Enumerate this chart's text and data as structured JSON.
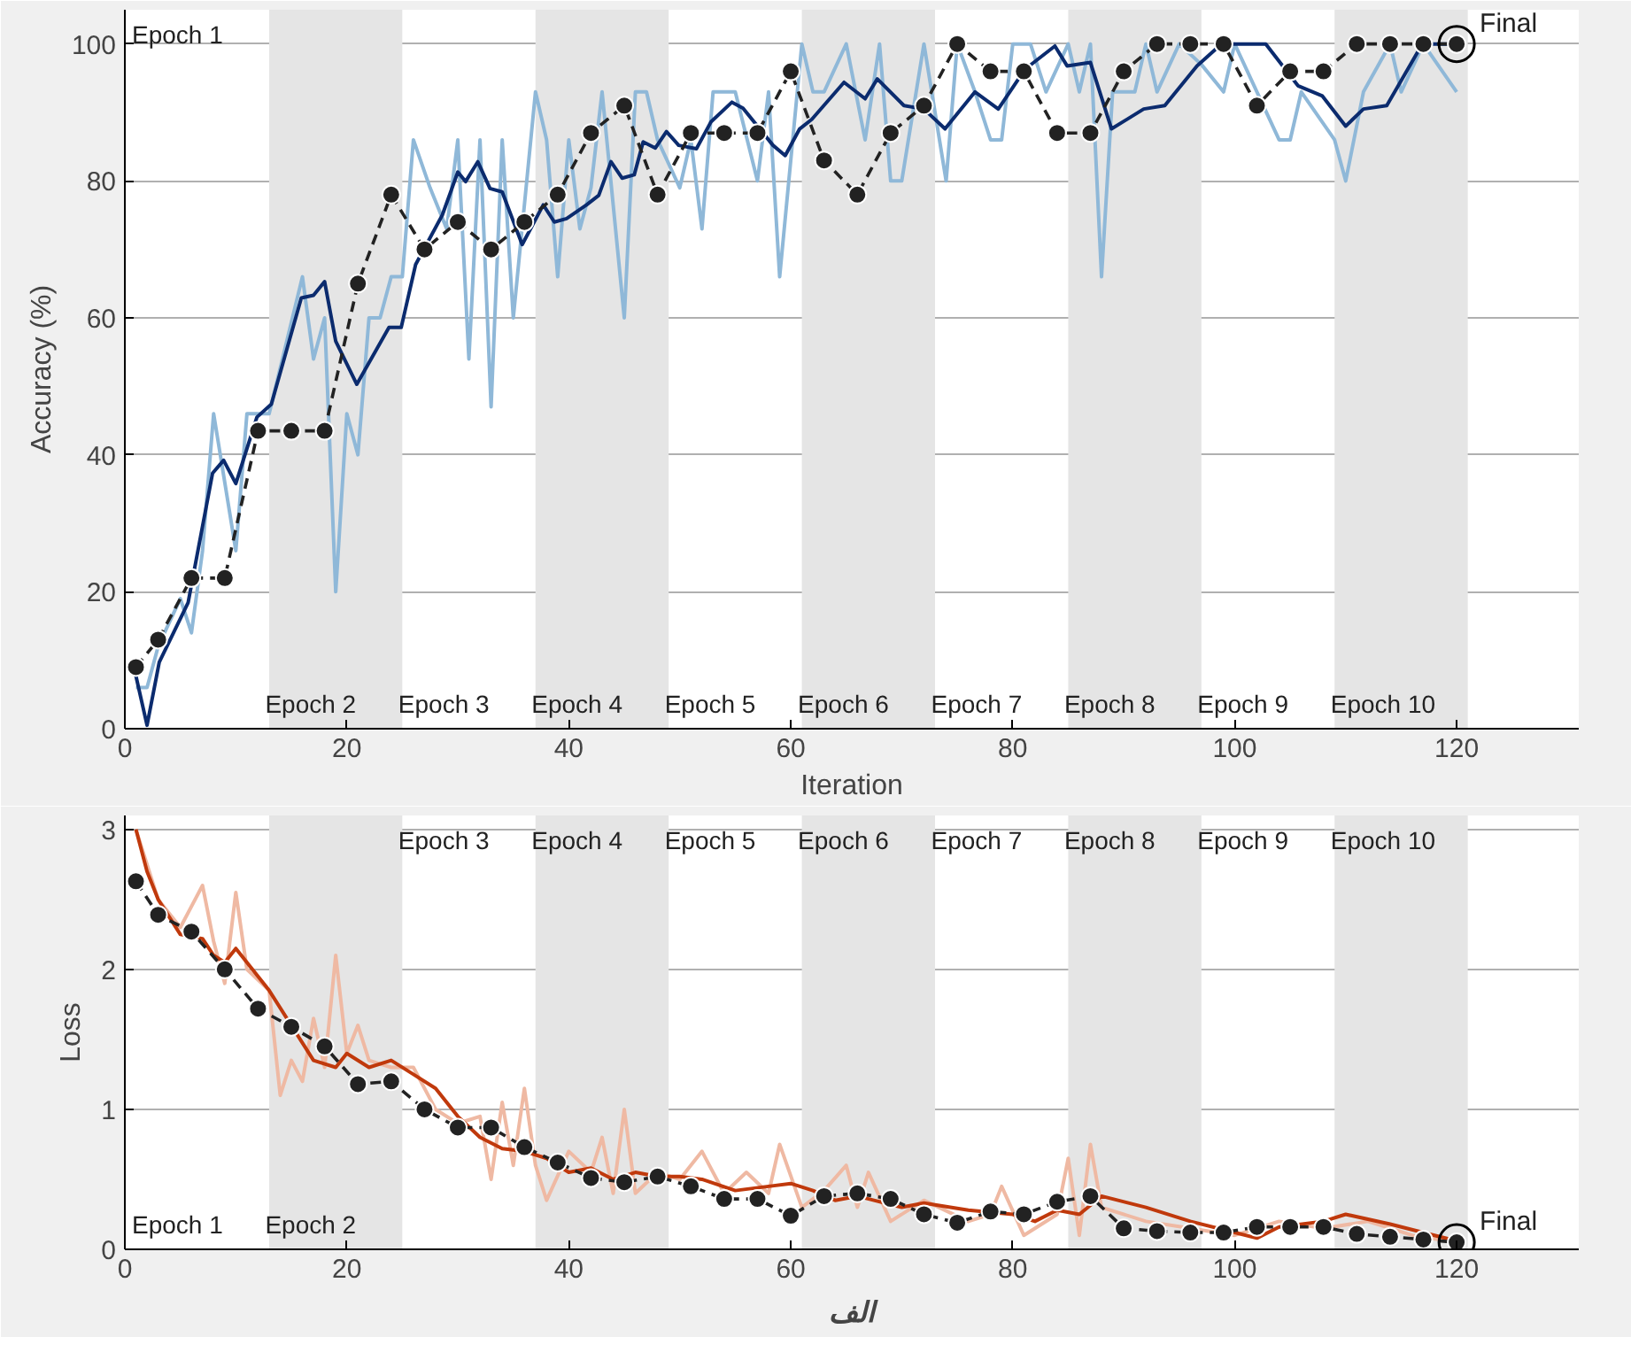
{
  "chart_data": [
    {
      "type": "line",
      "xlabel": "Iteration",
      "ylabel": "Accuracy (%)",
      "xlim": [
        0,
        131
      ],
      "ylim": [
        0,
        105
      ],
      "xticks": [
        0,
        20,
        40,
        60,
        80,
        100,
        120
      ],
      "yticks": [
        0,
        20,
        40,
        60,
        80,
        100
      ],
      "grid": "y",
      "series": [
        {
          "color": "#8fb8d8",
          "marker": "none",
          "line_style": "solid",
          "x": [
            1,
            2,
            3,
            5,
            6,
            7,
            8,
            9,
            10,
            11,
            13,
            16,
            17,
            18,
            19,
            20,
            21,
            22,
            23,
            24,
            25,
            26,
            27.5,
            29,
            30,
            31,
            32,
            33,
            34,
            35,
            37,
            38,
            39,
            40,
            41,
            42,
            43,
            45,
            46,
            47,
            48,
            50,
            51,
            52,
            53,
            55,
            57,
            58,
            59,
            61,
            62,
            63,
            65,
            66.7,
            68,
            69,
            70,
            72,
            74,
            75,
            76.6,
            78,
            79,
            80,
            81.6,
            83,
            85,
            86,
            87,
            88,
            89,
            91,
            92,
            93,
            95,
            97,
            99,
            100,
            104,
            105,
            106,
            109,
            110,
            111.6,
            114,
            115,
            117,
            120
          ],
          "values": [
            6,
            6,
            12,
            19,
            14,
            26,
            46,
            36,
            26,
            46,
            46,
            66,
            54,
            60,
            20,
            46,
            40,
            60,
            60,
            66,
            66,
            86,
            79,
            73,
            86,
            54,
            86,
            47,
            86,
            60,
            93,
            86,
            66,
            86,
            73,
            79,
            93,
            60,
            93,
            93,
            86,
            79,
            86,
            73,
            93,
            93,
            80,
            93,
            66,
            100,
            93,
            93,
            100,
            86,
            100,
            80,
            80,
            100,
            80,
            100,
            93,
            86,
            86,
            100,
            100,
            93,
            100,
            93,
            100,
            66,
            93,
            93,
            100,
            93,
            100,
            97,
            93,
            100,
            86,
            86,
            93,
            86,
            80,
            93,
            100,
            93,
            100,
            93
          ]
        },
        {
          "color": "#0b2b6e",
          "marker": "none",
          "line_style": "solid",
          "x": [
            1,
            2,
            3.1,
            5.7,
            7.9,
            8.9,
            10,
            11.9,
            13.2,
            15.9,
            17,
            18,
            19,
            20.9,
            23.8,
            24.9,
            26.2,
            28.6,
            30,
            30.7,
            31.8,
            32.9,
            34,
            35.8,
            37.7,
            38.7,
            39.8,
            41.6,
            42.7,
            43.8,
            44.8,
            45.9,
            46.7,
            47.8,
            48.8,
            49.9,
            51.5,
            52.8,
            54.7,
            55.7,
            58.4,
            59.5,
            60.8,
            61.9,
            64.8,
            66.7,
            67.8,
            70.2,
            72,
            73.9,
            76.6,
            78.7,
            81.1,
            83.8,
            84.9,
            87,
            88.9,
            91.8,
            93.7,
            96.6,
            98.8,
            102.8,
            105.7,
            107.9,
            110,
            111.6,
            113.7,
            116.9,
            119.6
          ],
          "values": [
            7.7,
            0.5,
            9.7,
            18.4,
            37.3,
            39.2,
            35.8,
            45.5,
            47.4,
            62.9,
            63.3,
            65.3,
            56.6,
            50.3,
            58.6,
            58.6,
            67.8,
            75,
            81.3,
            79.9,
            82.8,
            78.9,
            78.4,
            70.7,
            76.5,
            74,
            74.5,
            76.5,
            77.9,
            82.8,
            80.4,
            80.9,
            85.7,
            84.8,
            87.2,
            85.2,
            84.7,
            88.6,
            91.5,
            90.6,
            85.2,
            83.7,
            87.6,
            89,
            94.4,
            92,
            94.9,
            91,
            90.5,
            87.6,
            93,
            90.5,
            96.3,
            99.7,
            96.8,
            97.3,
            87.6,
            90.5,
            91,
            96.8,
            100,
            100,
            93.9,
            92.4,
            88,
            90.5,
            91,
            100,
            100
          ]
        },
        {
          "color": "#222222",
          "marker": "circle",
          "line_style": "dashed",
          "x": [
            1,
            3,
            6,
            9,
            12,
            15,
            18,
            21,
            24,
            27,
            30,
            33,
            36,
            39,
            42,
            45,
            48,
            51,
            54,
            57,
            60,
            63,
            66,
            69,
            72,
            75,
            78,
            81,
            84,
            87,
            90,
            93,
            96,
            99,
            102,
            105,
            108,
            111,
            114,
            117,
            120
          ],
          "values": [
            9,
            13,
            22,
            22,
            43.5,
            43.5,
            43.5,
            65,
            78,
            70,
            74,
            70,
            74,
            78,
            87,
            91,
            78,
            87,
            87,
            87,
            96,
            83,
            78,
            87,
            91,
            100,
            96,
            96,
            87,
            87,
            96,
            100,
            100,
            100,
            91,
            96,
            96,
            100,
            100,
            100,
            100
          ]
        }
      ],
      "bands": [
        {
          "axis": "x",
          "from": 13,
          "to": 25,
          "color": "#e5e5e5"
        },
        {
          "axis": "x",
          "from": 37,
          "to": 49,
          "color": "#e5e5e5"
        },
        {
          "axis": "x",
          "from": 61,
          "to": 73,
          "color": "#e5e5e5"
        },
        {
          "axis": "x",
          "from": 85,
          "to": 97,
          "color": "#e5e5e5"
        },
        {
          "axis": "x",
          "from": 109,
          "to": 121,
          "color": "#e5e5e5"
        }
      ],
      "annotations": [
        "Epoch 1",
        "Epoch 2",
        "Epoch 3",
        "Epoch 4",
        "Epoch 5",
        "Epoch 6",
        "Epoch 7",
        "Epoch 8",
        "Epoch 9",
        "Epoch 10",
        {
          "text": "Final",
          "x": 120,
          "y": 100
        }
      ]
    },
    {
      "type": "line",
      "ylabel": "Loss",
      "xlim": [
        0,
        131
      ],
      "ylim": [
        0,
        3.1
      ],
      "xticks": [
        0,
        20,
        40,
        60,
        80,
        100,
        120
      ],
      "yticks": [
        0,
        1,
        2,
        3
      ],
      "grid": "y",
      "series": [
        {
          "color": "#efb9a3",
          "marker": "none",
          "line_style": "solid",
          "x": [
            1,
            3,
            5,
            7,
            8,
            9,
            10,
            11,
            13,
            14,
            15,
            16,
            17,
            18,
            19,
            20,
            21,
            22,
            24,
            26,
            28,
            30,
            32,
            33,
            34,
            35,
            36,
            37,
            38,
            40,
            42,
            43,
            44,
            45,
            46,
            48,
            50,
            52,
            54,
            56,
            58,
            59,
            61,
            63,
            65,
            66,
            67,
            69,
            72,
            76,
            78,
            79,
            81,
            84,
            85,
            86,
            87,
            88,
            92,
            96,
            100,
            104,
            108,
            112,
            116,
            120
          ],
          "values": [
            3.0,
            2.5,
            2.3,
            2.6,
            2.2,
            1.9,
            2.55,
            2.0,
            1.85,
            1.1,
            1.35,
            1.2,
            1.65,
            1.3,
            2.1,
            1.4,
            1.6,
            1.35,
            1.3,
            1.3,
            1.0,
            0.9,
            0.95,
            0.5,
            1.05,
            0.6,
            1.15,
            0.6,
            0.35,
            0.7,
            0.55,
            0.8,
            0.4,
            1.0,
            0.4,
            0.55,
            0.5,
            0.7,
            0.4,
            0.55,
            0.4,
            0.75,
            0.3,
            0.42,
            0.6,
            0.3,
            0.55,
            0.2,
            0.35,
            0.2,
            0.25,
            0.45,
            0.1,
            0.25,
            0.65,
            0.1,
            0.75,
            0.3,
            0.2,
            0.15,
            0.1,
            0.2,
            0.15,
            0.2,
            0.1,
            0.05
          ]
        },
        {
          "color": "#c0390c",
          "marker": "none",
          "line_style": "solid",
          "x": [
            1,
            2,
            3,
            5,
            7,
            8,
            9,
            10,
            12,
            13,
            15,
            17,
            19,
            20,
            22,
            24,
            26,
            28,
            30,
            32,
            34,
            36,
            38,
            40,
            42,
            44,
            46,
            48,
            50,
            52,
            55,
            58,
            60,
            62,
            64,
            66,
            70,
            72,
            76,
            80,
            82,
            84,
            86,
            88,
            92,
            96,
            100,
            102,
            104,
            108,
            110,
            114,
            118,
            120
          ],
          "values": [
            3.0,
            2.7,
            2.5,
            2.25,
            2.22,
            2.1,
            2.05,
            2.15,
            1.95,
            1.85,
            1.6,
            1.35,
            1.3,
            1.4,
            1.3,
            1.35,
            1.25,
            1.15,
            0.95,
            0.8,
            0.72,
            0.7,
            0.65,
            0.55,
            0.58,
            0.5,
            0.55,
            0.52,
            0.52,
            0.5,
            0.42,
            0.45,
            0.47,
            0.42,
            0.35,
            0.38,
            0.3,
            0.33,
            0.28,
            0.25,
            0.2,
            0.28,
            0.25,
            0.38,
            0.3,
            0.2,
            0.12,
            0.08,
            0.16,
            0.2,
            0.25,
            0.18,
            0.1,
            0.06
          ]
        },
        {
          "color": "#222222",
          "marker": "circle",
          "line_style": "dashed",
          "x": [
            1,
            3,
            6,
            9,
            12,
            15,
            18,
            21,
            24,
            27,
            30,
            33,
            36,
            39,
            42,
            45,
            48,
            51,
            54,
            57,
            60,
            63,
            66,
            69,
            72,
            75,
            78,
            81,
            84,
            87,
            90,
            93,
            96,
            99,
            102,
            105,
            108,
            111,
            114,
            117,
            120
          ],
          "values": [
            2.63,
            2.39,
            2.27,
            2.0,
            1.72,
            1.59,
            1.45,
            1.18,
            1.2,
            1.0,
            0.87,
            0.87,
            0.73,
            0.62,
            0.51,
            0.48,
            0.52,
            0.45,
            0.36,
            0.36,
            0.24,
            0.38,
            0.4,
            0.36,
            0.25,
            0.19,
            0.27,
            0.25,
            0.34,
            0.38,
            0.15,
            0.13,
            0.12,
            0.12,
            0.16,
            0.16,
            0.16,
            0.11,
            0.09,
            0.07,
            0.05
          ]
        }
      ],
      "bands": [
        {
          "axis": "x",
          "from": 13,
          "to": 25,
          "color": "#e5e5e5"
        },
        {
          "axis": "x",
          "from": 37,
          "to": 49,
          "color": "#e5e5e5"
        },
        {
          "axis": "x",
          "from": 61,
          "to": 73,
          "color": "#e5e5e5"
        },
        {
          "axis": "x",
          "from": 85,
          "to": 97,
          "color": "#e5e5e5"
        },
        {
          "axis": "x",
          "from": 109,
          "to": 121,
          "color": "#e5e5e5"
        }
      ],
      "annotations": [
        "Epoch 1",
        "Epoch 2",
        "Epoch 3",
        "Epoch 4",
        "Epoch 5",
        "Epoch 6",
        "Epoch 7",
        "Epoch 8",
        "Epoch 9",
        "Epoch 10",
        {
          "text": "Final",
          "x": 120,
          "y": 0.05
        },
        "الف"
      ]
    }
  ]
}
